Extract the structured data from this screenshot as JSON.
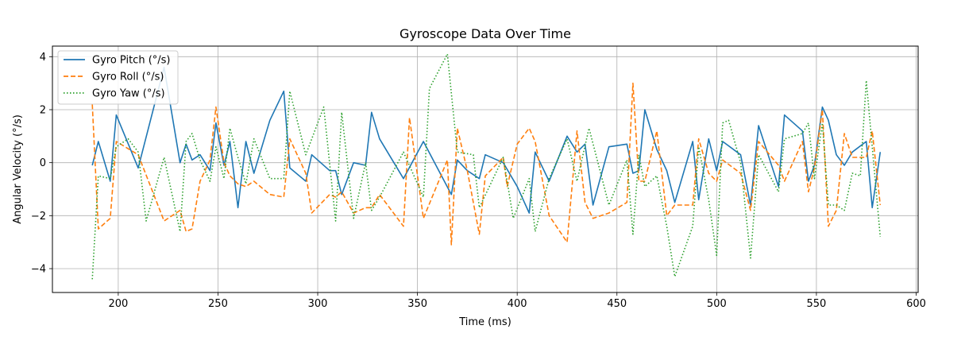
{
  "chart_data": {
    "type": "line",
    "title": "Gyroscope Data Over Time",
    "xlabel": "Time (ms)",
    "ylabel": "Angular Velocity (°/s)",
    "xlim": [
      167,
      601
    ],
    "ylim": [
      -4.9,
      4.4
    ],
    "xticks": [
      200,
      250,
      300,
      350,
      400,
      450,
      500,
      550,
      600
    ],
    "yticks": [
      -4,
      -2,
      0,
      2,
      4
    ],
    "grid": true,
    "legend_position": "top-left",
    "series": [
      {
        "name": "Gyro Pitch (°/s)",
        "color": "#1f77b4",
        "dash": "solid",
        "points": [
          [
            187,
            -0.1
          ],
          [
            190,
            0.8
          ],
          [
            196,
            -0.7
          ],
          [
            199,
            1.8
          ],
          [
            210,
            -0.2
          ],
          [
            223,
            3.6
          ],
          [
            231,
            0.0
          ],
          [
            234,
            0.7
          ],
          [
            237,
            0.1
          ],
          [
            241,
            0.3
          ],
          [
            246,
            -0.3
          ],
          [
            249,
            1.5
          ],
          [
            253,
            -0.1
          ],
          [
            256,
            0.8
          ],
          [
            260,
            -1.7
          ],
          [
            264,
            0.8
          ],
          [
            268,
            -0.4
          ],
          [
            276,
            1.6
          ],
          [
            283,
            2.7
          ],
          [
            286,
            -0.2
          ],
          [
            294,
            -0.7
          ],
          [
            297,
            0.3
          ],
          [
            306,
            -0.3
          ],
          [
            309,
            -0.3
          ],
          [
            312,
            -1.2
          ],
          [
            318,
            0.0
          ],
          [
            324,
            -0.1
          ],
          [
            327,
            1.9
          ],
          [
            331,
            0.9
          ],
          [
            343,
            -0.6
          ],
          [
            353,
            0.8
          ],
          [
            367,
            -1.2
          ],
          [
            370,
            0.1
          ],
          [
            375,
            -0.3
          ],
          [
            381,
            -0.6
          ],
          [
            384,
            0.3
          ],
          [
            393,
            0.0
          ],
          [
            400,
            -0.9
          ],
          [
            406,
            -1.9
          ],
          [
            409,
            0.4
          ],
          [
            416,
            -0.7
          ],
          [
            425,
            1.0
          ],
          [
            430,
            0.4
          ],
          [
            434,
            0.7
          ],
          [
            438,
            -1.6
          ],
          [
            446,
            0.6
          ],
          [
            455,
            0.7
          ],
          [
            458,
            -0.4
          ],
          [
            461,
            -0.3
          ],
          [
            464,
            2.0
          ],
          [
            470,
            0.5
          ],
          [
            475,
            -0.3
          ],
          [
            479,
            -1.5
          ],
          [
            488,
            0.8
          ],
          [
            491,
            -1.4
          ],
          [
            496,
            0.9
          ],
          [
            500,
            -0.3
          ],
          [
            503,
            0.8
          ],
          [
            512,
            0.3
          ],
          [
            517,
            -1.6
          ],
          [
            521,
            1.4
          ],
          [
            531,
            -0.9
          ],
          [
            534,
            1.8
          ],
          [
            543,
            1.2
          ],
          [
            546,
            -0.7
          ],
          [
            549,
            -0.1
          ],
          [
            553,
            2.1
          ],
          [
            556,
            1.6
          ],
          [
            560,
            0.3
          ],
          [
            564,
            -0.1
          ],
          [
            568,
            0.4
          ],
          [
            575,
            0.8
          ],
          [
            578,
            -1.7
          ],
          [
            582,
            0.4
          ]
        ]
      },
      {
        "name": "Gyro Roll (°/s)",
        "color": "#ff7f0e",
        "dash": "dashed",
        "points": [
          [
            187,
            2.2
          ],
          [
            190,
            -2.5
          ],
          [
            196,
            -2.1
          ],
          [
            199,
            0.8
          ],
          [
            210,
            0.3
          ],
          [
            223,
            -2.2
          ],
          [
            231,
            -1.8
          ],
          [
            234,
            -2.6
          ],
          [
            237,
            -2.5
          ],
          [
            241,
            -0.7
          ],
          [
            246,
            0.1
          ],
          [
            249,
            2.1
          ],
          [
            253,
            0.0
          ],
          [
            256,
            -0.5
          ],
          [
            260,
            -0.8
          ],
          [
            264,
            -0.9
          ],
          [
            268,
            -0.7
          ],
          [
            276,
            -1.2
          ],
          [
            283,
            -1.3
          ],
          [
            286,
            0.9
          ],
          [
            294,
            -0.4
          ],
          [
            297,
            -1.9
          ],
          [
            306,
            -1.2
          ],
          [
            309,
            -1.3
          ],
          [
            312,
            -1.1
          ],
          [
            318,
            -1.9
          ],
          [
            324,
            -1.7
          ],
          [
            327,
            -1.7
          ],
          [
            331,
            -1.2
          ],
          [
            343,
            -2.4
          ],
          [
            346,
            1.7
          ],
          [
            353,
            -2.1
          ],
          [
            365,
            0.1
          ],
          [
            367,
            -3.1
          ],
          [
            370,
            1.3
          ],
          [
            375,
            -0.3
          ],
          [
            381,
            -2.7
          ],
          [
            384,
            -0.5
          ],
          [
            393,
            0.2
          ],
          [
            395,
            -0.9
          ],
          [
            400,
            0.7
          ],
          [
            406,
            1.3
          ],
          [
            409,
            0.8
          ],
          [
            416,
            -2.0
          ],
          [
            425,
            -3.0
          ],
          [
            430,
            1.2
          ],
          [
            434,
            -1.5
          ],
          [
            438,
            -2.1
          ],
          [
            446,
            -1.9
          ],
          [
            455,
            -1.5
          ],
          [
            458,
            3.0
          ],
          [
            461,
            -0.7
          ],
          [
            464,
            -0.7
          ],
          [
            470,
            1.2
          ],
          [
            475,
            -2.0
          ],
          [
            479,
            -1.6
          ],
          [
            488,
            -1.6
          ],
          [
            491,
            0.9
          ],
          [
            496,
            -0.4
          ],
          [
            500,
            -0.7
          ],
          [
            503,
            0.1
          ],
          [
            512,
            -0.4
          ],
          [
            517,
            -1.8
          ],
          [
            521,
            0.8
          ],
          [
            531,
            -0.1
          ],
          [
            534,
            -0.7
          ],
          [
            543,
            0.8
          ],
          [
            546,
            -1.1
          ],
          [
            549,
            -0.2
          ],
          [
            553,
            2.0
          ],
          [
            556,
            -2.4
          ],
          [
            560,
            -1.8
          ],
          [
            564,
            1.1
          ],
          [
            568,
            0.2
          ],
          [
            575,
            0.2
          ],
          [
            578,
            1.2
          ],
          [
            582,
            -1.6
          ]
        ]
      },
      {
        "name": "Gyro Yaw (°/s)",
        "color": "#2ca02c",
        "dash": "dotted",
        "points": [
          [
            187,
            -4.4
          ],
          [
            190,
            -0.5
          ],
          [
            196,
            -0.6
          ],
          [
            199,
            0.6
          ],
          [
            205,
            0.9
          ],
          [
            210,
            0.4
          ],
          [
            214,
            -2.2
          ],
          [
            223,
            0.2
          ],
          [
            231,
            -2.6
          ],
          [
            234,
            0.8
          ],
          [
            237,
            1.1
          ],
          [
            241,
            0.1
          ],
          [
            246,
            -0.7
          ],
          [
            249,
            0.6
          ],
          [
            253,
            -0.6
          ],
          [
            256,
            1.3
          ],
          [
            260,
            0.2
          ],
          [
            264,
            -0.8
          ],
          [
            268,
            0.9
          ],
          [
            276,
            -0.6
          ],
          [
            283,
            -0.6
          ],
          [
            286,
            2.7
          ],
          [
            294,
            0.3
          ],
          [
            303,
            2.1
          ],
          [
            309,
            -2.2
          ],
          [
            312,
            1.9
          ],
          [
            318,
            -2.1
          ],
          [
            324,
            0.0
          ],
          [
            327,
            -1.8
          ],
          [
            331,
            -1.3
          ],
          [
            343,
            0.4
          ],
          [
            353,
            -1.3
          ],
          [
            356,
            2.8
          ],
          [
            365,
            4.1
          ],
          [
            370,
            0.4
          ],
          [
            378,
            0.3
          ],
          [
            381,
            -1.7
          ],
          [
            393,
            0.2
          ],
          [
            398,
            -2.1
          ],
          [
            406,
            -0.6
          ],
          [
            409,
            -2.6
          ],
          [
            416,
            -0.6
          ],
          [
            425,
            0.9
          ],
          [
            430,
            -0.7
          ],
          [
            436,
            1.3
          ],
          [
            446,
            -1.6
          ],
          [
            455,
            0.1
          ],
          [
            458,
            -2.7
          ],
          [
            461,
            0.3
          ],
          [
            464,
            -0.9
          ],
          [
            470,
            -0.5
          ],
          [
            475,
            -2.4
          ],
          [
            479,
            -4.3
          ],
          [
            488,
            -2.4
          ],
          [
            491,
            0.6
          ],
          [
            496,
            -1.4
          ],
          [
            500,
            -3.5
          ],
          [
            503,
            1.5
          ],
          [
            506,
            1.6
          ],
          [
            512,
            0.0
          ],
          [
            517,
            -3.6
          ],
          [
            521,
            0.3
          ],
          [
            531,
            -1.1
          ],
          [
            534,
            0.9
          ],
          [
            543,
            1.1
          ],
          [
            546,
            1.5
          ],
          [
            549,
            -0.6
          ],
          [
            553,
            1.5
          ],
          [
            556,
            -1.6
          ],
          [
            560,
            -1.6
          ],
          [
            564,
            -1.8
          ],
          [
            568,
            -0.4
          ],
          [
            572,
            -0.5
          ],
          [
            575,
            3.1
          ],
          [
            578,
            0.6
          ],
          [
            582,
            -2.8
          ]
        ]
      }
    ]
  }
}
